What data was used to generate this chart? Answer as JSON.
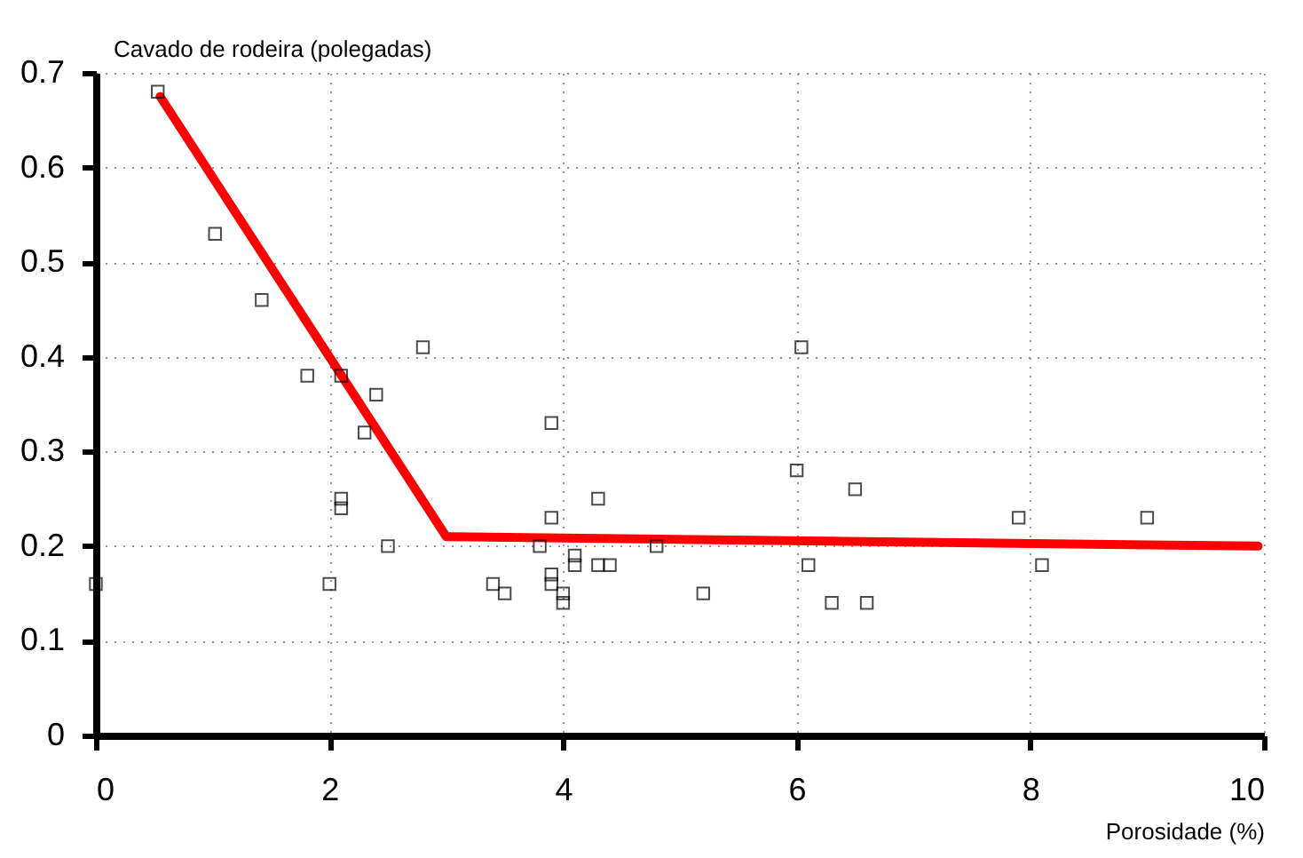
{
  "chart_data": {
    "type": "scatter",
    "ylabel": "Cavado de rodeira (polegadas)",
    "xlabel": "Porosidade (%)",
    "xlim": [
      0,
      10
    ],
    "xticks": [
      0,
      2,
      4,
      6,
      8,
      10
    ],
    "ylim": [
      0,
      0.7
    ],
    "yticks": [
      0,
      0.1,
      0.2,
      0.3,
      0.4,
      0.5,
      0.6,
      0.7
    ],
    "grid": true,
    "series": [
      {
        "marker": "square",
        "color": "#000000",
        "x": [
          0.53,
          1.02,
          1.42,
          1.81,
          2.1,
          2.4,
          2.3,
          2.8,
          2.1,
          2.1,
          2.0,
          2.5,
          0,
          3.9,
          3.9,
          4.3,
          3.8,
          4.1,
          4.1,
          4.3,
          4.4,
          4.8,
          3.9,
          3.9,
          4.0,
          4.0,
          3.4,
          3.5,
          5.2,
          6.04,
          6.0,
          6.5,
          6.1,
          6.3,
          6.6,
          7.9,
          8.1,
          9.0
        ],
        "values": [
          0.68,
          0.53,
          0.46,
          0.38,
          0.38,
          0.36,
          0.32,
          0.41,
          0.25,
          0.24,
          0.16,
          0.2,
          0.16,
          0.33,
          0.23,
          0.25,
          0.2,
          0.19,
          0.18,
          0.18,
          0.18,
          0.2,
          0.17,
          0.16,
          0.15,
          0.14,
          0.16,
          0.15,
          0.15,
          0.41,
          0.28,
          0.26,
          0.18,
          0.14,
          0.14,
          0.23,
          0.18,
          0.23
        ]
      },
      {
        "type": "line",
        "color": "#ff0000",
        "x": [
          0.55,
          3.0,
          9.95
        ],
        "values": [
          0.675,
          0.21,
          0.2
        ]
      }
    ]
  }
}
